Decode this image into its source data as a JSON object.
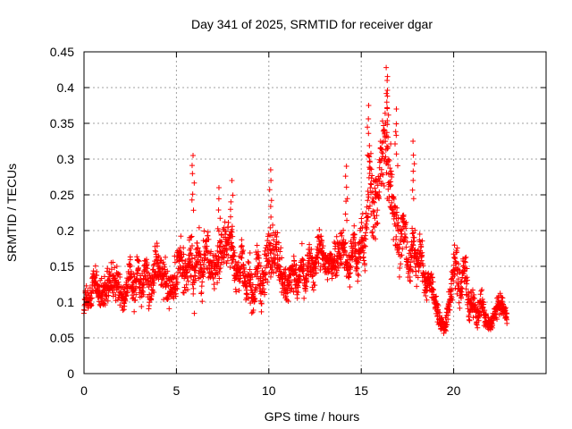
{
  "chart_data": {
    "type": "scatter",
    "title": "Day 341 of 2025, SRMTID for receiver dgar",
    "xlabel": "GPS time / hours",
    "ylabel": "SRMTID / TECUs",
    "xlim": [
      0,
      25
    ],
    "ylim": [
      0,
      0.45
    ],
    "xticks": [
      0,
      5,
      10,
      15,
      20
    ],
    "xtick_labels": [
      "0",
      "5",
      "10",
      "15",
      "20"
    ],
    "yticks": [
      0,
      0.05,
      0.1,
      0.15,
      0.2,
      0.25,
      0.3,
      0.35,
      0.4,
      0.45
    ],
    "ytick_labels": [
      "0",
      "0.05",
      "0.1",
      "0.15",
      "0.2",
      "0.25",
      "0.3",
      "0.35",
      "0.4",
      "0.45"
    ],
    "grid": true,
    "marker": "+",
    "color": "#ff0000",
    "series": [
      {
        "name": "SRMTID",
        "envelope": [
          {
            "x": 0.0,
            "mean": 0.09,
            "spread": 0.03
          },
          {
            "x": 0.5,
            "mean": 0.125,
            "spread": 0.03
          },
          {
            "x": 1.0,
            "mean": 0.12,
            "spread": 0.035
          },
          {
            "x": 1.5,
            "mean": 0.11,
            "spread": 0.05
          },
          {
            "x": 2.0,
            "mean": 0.12,
            "spread": 0.04
          },
          {
            "x": 3.0,
            "mean": 0.13,
            "spread": 0.04
          },
          {
            "x": 4.0,
            "mean": 0.14,
            "spread": 0.05
          },
          {
            "x": 5.0,
            "mean": 0.14,
            "spread": 0.05
          },
          {
            "x": 6.0,
            "mean": 0.15,
            "spread": 0.06
          },
          {
            "x": 7.0,
            "mean": 0.16,
            "spread": 0.05
          },
          {
            "x": 8.0,
            "mean": 0.17,
            "spread": 0.05
          },
          {
            "x": 9.0,
            "mean": 0.12,
            "spread": 0.05
          },
          {
            "x": 10.0,
            "mean": 0.15,
            "spread": 0.06
          },
          {
            "x": 10.5,
            "mean": 0.17,
            "spread": 0.06
          },
          {
            "x": 11.0,
            "mean": 0.13,
            "spread": 0.04
          },
          {
            "x": 12.0,
            "mean": 0.14,
            "spread": 0.04
          },
          {
            "x": 13.0,
            "mean": 0.17,
            "spread": 0.05
          },
          {
            "x": 14.0,
            "mean": 0.16,
            "spread": 0.05
          },
          {
            "x": 15.0,
            "mean": 0.17,
            "spread": 0.05
          },
          {
            "x": 15.5,
            "mean": 0.25,
            "spread": 0.09
          },
          {
            "x": 16.3,
            "mean": 0.28,
            "spread": 0.1
          },
          {
            "x": 17.0,
            "mean": 0.22,
            "spread": 0.08
          },
          {
            "x": 17.5,
            "mean": 0.16,
            "spread": 0.05
          },
          {
            "x": 18.0,
            "mean": 0.17,
            "spread": 0.05
          },
          {
            "x": 19.0,
            "mean": 0.1,
            "spread": 0.03
          },
          {
            "x": 19.5,
            "mean": 0.07,
            "spread": 0.02
          },
          {
            "x": 20.0,
            "mean": 0.13,
            "spread": 0.05
          },
          {
            "x": 20.5,
            "mean": 0.14,
            "spread": 0.06
          },
          {
            "x": 21.0,
            "mean": 0.09,
            "spread": 0.03
          },
          {
            "x": 21.5,
            "mean": 0.09,
            "spread": 0.03
          },
          {
            "x": 22.0,
            "mean": 0.07,
            "spread": 0.02
          },
          {
            "x": 22.5,
            "mean": 0.09,
            "spread": 0.025
          },
          {
            "x": 22.8,
            "mean": 0.08,
            "spread": 0.02
          }
        ],
        "peaks": [
          {
            "x": 5.9,
            "y": 0.305
          },
          {
            "x": 10.1,
            "y": 0.285
          },
          {
            "x": 16.35,
            "y": 0.428
          },
          {
            "x": 16.4,
            "y": 0.41
          },
          {
            "x": 15.4,
            "y": 0.375
          },
          {
            "x": 16.9,
            "y": 0.37
          },
          {
            "x": 14.2,
            "y": 0.29
          },
          {
            "x": 17.8,
            "y": 0.325
          },
          {
            "x": 8.0,
            "y": 0.27
          },
          {
            "x": 7.3,
            "y": 0.26
          }
        ],
        "x_range": [
          0,
          22.9
        ],
        "min_value": 0.035
      }
    ]
  }
}
